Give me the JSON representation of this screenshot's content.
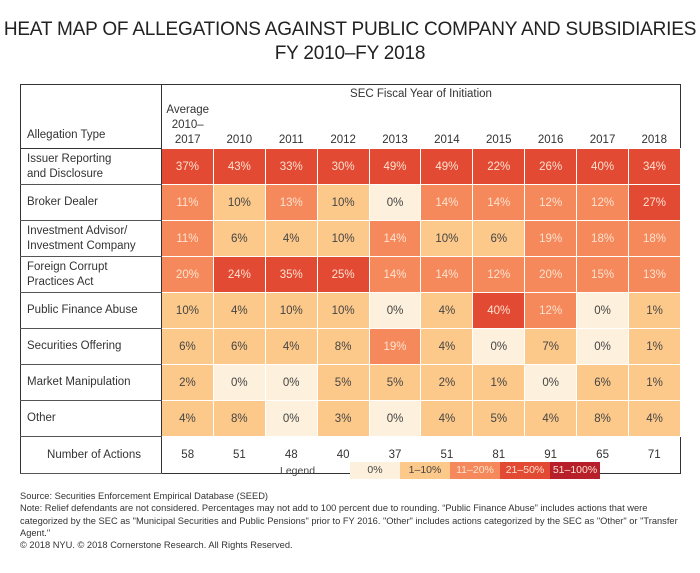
{
  "title_line1": "HEAT MAP OF ALLEGATIONS AGAINST PUBLIC COMPANY AND SUBSIDIARIES",
  "title_line2": "FY 2010–FY 2018",
  "chart_data": {
    "type": "heatmap",
    "title": "HEAT MAP OF ALLEGATIONS AGAINST PUBLIC COMPANY AND SUBSIDIARIES FY 2010–FY 2018",
    "row_header": "Allegation Type",
    "column_group_label": "SEC Fiscal Year of Initiation",
    "columns": [
      "Average 2010–2017",
      "2010",
      "2011",
      "2012",
      "2013",
      "2014",
      "2015",
      "2016",
      "2017",
      "2018"
    ],
    "column_lines": [
      [
        "Average",
        "2010–2017"
      ],
      [
        "2010"
      ],
      [
        "2011"
      ],
      [
        "2012"
      ],
      [
        "2013"
      ],
      [
        "2014"
      ],
      [
        "2015"
      ],
      [
        "2016"
      ],
      [
        "2017"
      ],
      [
        "2018"
      ]
    ],
    "unit": "%",
    "rows": [
      {
        "label_lines": [
          "Issuer Reporting",
          "and Disclosure"
        ],
        "values": [
          37,
          43,
          33,
          30,
          49,
          49,
          22,
          26,
          40,
          34
        ]
      },
      {
        "label_lines": [
          "Broker Dealer"
        ],
        "values": [
          11,
          10,
          13,
          10,
          0,
          14,
          14,
          12,
          12,
          27
        ]
      },
      {
        "label_lines": [
          "Investment Advisor/",
          "Investment Company"
        ],
        "values": [
          11,
          6,
          4,
          10,
          14,
          10,
          6,
          19,
          18,
          18
        ]
      },
      {
        "label_lines": [
          "Foreign Corrupt",
          "Practices Act"
        ],
        "values": [
          20,
          24,
          35,
          25,
          14,
          14,
          12,
          20,
          15,
          13
        ]
      },
      {
        "label_lines": [
          "Public Finance Abuse"
        ],
        "values": [
          10,
          4,
          10,
          10,
          0,
          4,
          40,
          12,
          0,
          1
        ]
      },
      {
        "label_lines": [
          "Securities Offering"
        ],
        "values": [
          6,
          6,
          4,
          8,
          19,
          4,
          0,
          7,
          0,
          1
        ]
      },
      {
        "label_lines": [
          "Market Manipulation"
        ],
        "values": [
          2,
          0,
          0,
          5,
          5,
          2,
          1,
          0,
          6,
          1
        ]
      },
      {
        "label_lines": [
          "Other"
        ],
        "values": [
          4,
          8,
          0,
          3,
          0,
          4,
          5,
          4,
          8,
          4
        ]
      }
    ],
    "totals_row": {
      "label": "Number of Actions",
      "values": [
        58,
        51,
        48,
        40,
        37,
        51,
        81,
        91,
        65,
        71
      ]
    },
    "legend": {
      "title": "Legend",
      "placement": "bottom-center",
      "bins": [
        {
          "label": "0%",
          "min": 0,
          "max": 0,
          "color": "#fdf0dc"
        },
        {
          "label": "1–10%",
          "min": 1,
          "max": 10,
          "color": "#fcc98a"
        },
        {
          "label": "11–20%",
          "min": 11,
          "max": 20,
          "color": "#f5895b"
        },
        {
          "label": "21–50%",
          "min": 21,
          "max": 50,
          "color": "#e34a33"
        },
        {
          "label": "51–100%",
          "min": 51,
          "max": 100,
          "color": "#b7202a"
        }
      ]
    }
  },
  "notes": {
    "source": "Source:  Securities Enforcement Empirical Database (SEED)",
    "note": "Note:  Relief defendants are not considered.  Percentages may not add to 100 percent due to rounding.  “Public Finance Abuse” includes actions that were categorized by the SEC as \"Municipal Securities and Public Pensions\" prior to FY 2016.  \"Other\" includes actions categorized by the SEC as \"Other\" or \"Transfer Agent.\"",
    "copyright": "© 2018 NYU. © 2018 Cornerstone Research. All Rights Reserved."
  }
}
